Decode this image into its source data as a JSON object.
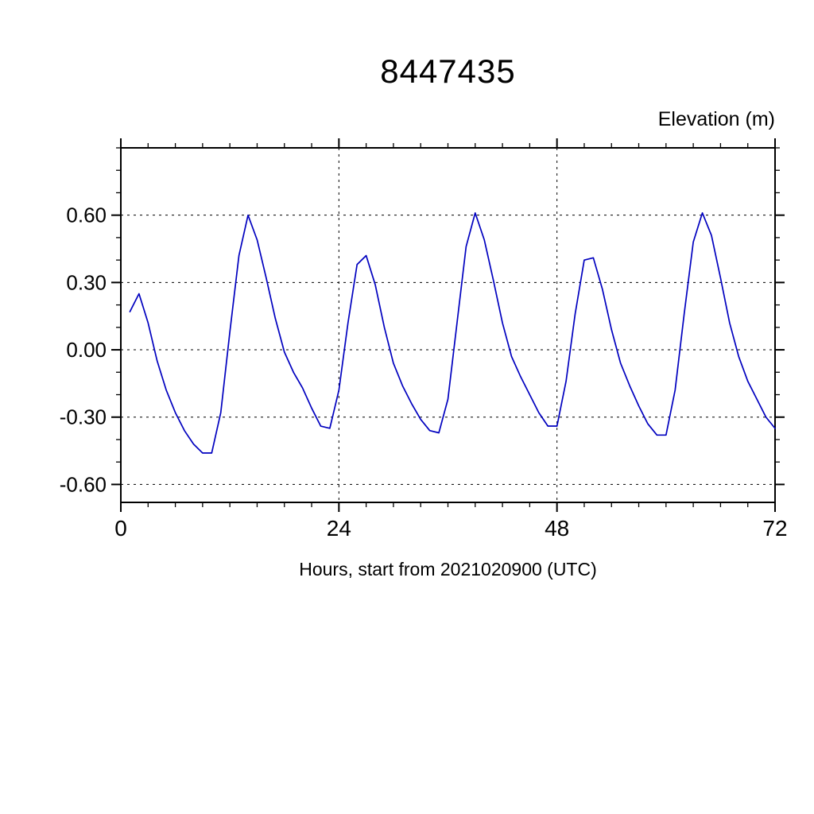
{
  "chart_data": {
    "type": "line",
    "title": "8447435",
    "ylabel": "Elevation (m)",
    "xlabel": "Hours, start from 2021020900 (UTC)",
    "xlim": [
      0,
      72
    ],
    "ylim": [
      -0.68,
      0.9
    ],
    "xticks_major": [
      0,
      24,
      48,
      72
    ],
    "xtick_minor_interval": 3,
    "yticks_major": [
      -0.6,
      -0.3,
      0.0,
      0.3,
      0.6
    ],
    "ytick_minor_interval": 0.1,
    "grid_x": [
      24,
      48
    ],
    "grid_y": [
      -0.6,
      -0.3,
      0.0,
      0.3,
      0.6
    ],
    "line_color": "#0000bf",
    "x": [
      1,
      2,
      3,
      4,
      5,
      6,
      7,
      8,
      9,
      10,
      11,
      12,
      13,
      14,
      15,
      16,
      17,
      18,
      19,
      20,
      21,
      22,
      23,
      24,
      25,
      26,
      27,
      28,
      29,
      30,
      31,
      32,
      33,
      34,
      35,
      36,
      37,
      38,
      39,
      40,
      41,
      42,
      43,
      44,
      45,
      46,
      47,
      48,
      49,
      50,
      51,
      52,
      53,
      54,
      55,
      56,
      57,
      58,
      59,
      60,
      61,
      62,
      63,
      64,
      65,
      66,
      67,
      68,
      69,
      70,
      71,
      72
    ],
    "y": [
      0.17,
      0.25,
      0.12,
      -0.05,
      -0.18,
      -0.28,
      -0.36,
      -0.42,
      -0.46,
      -0.46,
      -0.28,
      0.08,
      0.42,
      0.6,
      0.49,
      0.32,
      0.14,
      -0.01,
      -0.1,
      -0.17,
      -0.26,
      -0.34,
      -0.35,
      -0.18,
      0.12,
      0.38,
      0.42,
      0.29,
      0.1,
      -0.06,
      -0.16,
      -0.24,
      -0.31,
      -0.36,
      -0.37,
      -0.22,
      0.12,
      0.46,
      0.61,
      0.49,
      0.31,
      0.12,
      -0.03,
      -0.12,
      -0.2,
      -0.28,
      -0.34,
      -0.34,
      -0.14,
      0.16,
      0.4,
      0.41,
      0.27,
      0.09,
      -0.06,
      -0.16,
      -0.25,
      -0.33,
      -0.38,
      -0.38,
      -0.18,
      0.16,
      0.48,
      0.61,
      0.51,
      0.32,
      0.12,
      -0.03,
      -0.14,
      -0.22,
      -0.3,
      -0.35
    ]
  }
}
